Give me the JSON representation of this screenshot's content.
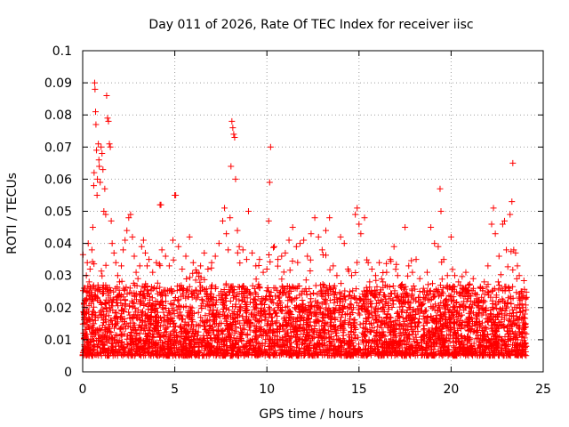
{
  "chart_data": {
    "type": "scatter",
    "title": "Day 011 of 2026, Rate Of TEC Index for receiver iisc",
    "xlabel": "GPS time / hours",
    "ylabel": "ROTI / TECUs",
    "xlim": [
      0,
      25
    ],
    "ylim": [
      0,
      0.1
    ],
    "x_ticks": [
      0,
      5,
      10,
      15,
      20,
      25
    ],
    "y_ticks": [
      0,
      0.01,
      0.02,
      0.03,
      0.04,
      0.05,
      0.06,
      0.07,
      0.08,
      0.09,
      0.1
    ],
    "x_tick_labels": [
      "0",
      "5",
      "10",
      "15",
      "20",
      "25"
    ],
    "y_tick_labels": [
      "0",
      "0.01",
      "0.02",
      "0.03",
      "0.04",
      "0.05",
      "0.06",
      "0.07",
      "0.08",
      "0.09",
      "0.1"
    ],
    "grid": true,
    "marker": "+",
    "series_color": "#ff0000",
    "points": [
      [
        0.05,
        0.012
      ],
      [
        0.1,
        0.018
      ],
      [
        0.15,
        0.022
      ],
      [
        0.2,
        0.03
      ],
      [
        0.25,
        0.034
      ],
      [
        0.3,
        0.04
      ],
      [
        0.35,
        0.028
      ],
      [
        0.4,
        0.032
      ],
      [
        0.45,
        0.026
      ],
      [
        0.5,
        0.038
      ],
      [
        0.55,
        0.045
      ],
      [
        0.6,
        0.058
      ],
      [
        0.62,
        0.062
      ],
      [
        0.65,
        0.09
      ],
      [
        0.67,
        0.088
      ],
      [
        0.7,
        0.081
      ],
      [
        0.72,
        0.077
      ],
      [
        0.75,
        0.069
      ],
      [
        0.78,
        0.055
      ],
      [
        0.8,
        0.06
      ],
      [
        0.85,
        0.071
      ],
      [
        0.88,
        0.066
      ],
      [
        0.9,
        0.064
      ],
      [
        0.95,
        0.059
      ],
      [
        1.0,
        0.07
      ],
      [
        1.05,
        0.068
      ],
      [
        1.1,
        0.063
      ],
      [
        1.15,
        0.05
      ],
      [
        1.2,
        0.057
      ],
      [
        1.25,
        0.049
      ],
      [
        1.3,
        0.086
      ],
      [
        1.35,
        0.079
      ],
      [
        1.4,
        0.078
      ],
      [
        1.45,
        0.071
      ],
      [
        1.5,
        0.07
      ],
      [
        1.55,
        0.047
      ],
      [
        1.6,
        0.04
      ],
      [
        1.7,
        0.037
      ],
      [
        1.8,
        0.034
      ],
      [
        1.9,
        0.03
      ],
      [
        2.0,
        0.028
      ],
      [
        2.1,
        0.033
      ],
      [
        2.2,
        0.038
      ],
      [
        2.3,
        0.041
      ],
      [
        2.4,
        0.044
      ],
      [
        2.5,
        0.048
      ],
      [
        2.6,
        0.049
      ],
      [
        2.7,
        0.042
      ],
      [
        2.8,
        0.036
      ],
      [
        2.9,
        0.031
      ],
      [
        3.0,
        0.029
      ],
      [
        3.1,
        0.033
      ],
      [
        3.2,
        0.039
      ],
      [
        3.3,
        0.041
      ],
      [
        3.4,
        0.037
      ],
      [
        3.5,
        0.033
      ],
      [
        3.6,
        0.035
      ],
      [
        3.8,
        0.031
      ],
      [
        4.0,
        0.034
      ],
      [
        4.2,
        0.052
      ],
      [
        4.25,
        0.052
      ],
      [
        4.3,
        0.038
      ],
      [
        4.5,
        0.036
      ],
      [
        4.7,
        0.033
      ],
      [
        4.9,
        0.041
      ],
      [
        5.0,
        0.055
      ],
      [
        5.05,
        0.055
      ],
      [
        5.2,
        0.039
      ],
      [
        5.4,
        0.032
      ],
      [
        5.6,
        0.036
      ],
      [
        5.8,
        0.042
      ],
      [
        6.0,
        0.034
      ],
      [
        6.2,
        0.031
      ],
      [
        6.4,
        0.033
      ],
      [
        6.6,
        0.037
      ],
      [
        6.8,
        0.032
      ],
      [
        7.0,
        0.034
      ],
      [
        7.2,
        0.036
      ],
      [
        7.4,
        0.04
      ],
      [
        7.6,
        0.047
      ],
      [
        7.7,
        0.051
      ],
      [
        7.8,
        0.043
      ],
      [
        7.9,
        0.038
      ],
      [
        8.0,
        0.048
      ],
      [
        8.05,
        0.064
      ],
      [
        8.1,
        0.078
      ],
      [
        8.15,
        0.076
      ],
      [
        8.2,
        0.074
      ],
      [
        8.25,
        0.073
      ],
      [
        8.3,
        0.06
      ],
      [
        8.4,
        0.044
      ],
      [
        8.5,
        0.039
      ],
      [
        8.7,
        0.038
      ],
      [
        8.9,
        0.035
      ],
      [
        9.0,
        0.05
      ],
      [
        9.2,
        0.037
      ],
      [
        9.4,
        0.033
      ],
      [
        9.6,
        0.035
      ],
      [
        9.8,
        0.031
      ],
      [
        10.0,
        0.032
      ],
      [
        10.1,
        0.047
      ],
      [
        10.15,
        0.059
      ],
      [
        10.2,
        0.07
      ],
      [
        10.4,
        0.039
      ],
      [
        10.6,
        0.035
      ],
      [
        10.8,
        0.036
      ],
      [
        11.0,
        0.037
      ],
      [
        11.2,
        0.041
      ],
      [
        11.4,
        0.045
      ],
      [
        11.6,
        0.039
      ],
      [
        11.8,
        0.04
      ],
      [
        12.0,
        0.041
      ],
      [
        12.2,
        0.036
      ],
      [
        12.4,
        0.043
      ],
      [
        12.6,
        0.048
      ],
      [
        12.8,
        0.042
      ],
      [
        13.0,
        0.038
      ],
      [
        13.2,
        0.044
      ],
      [
        13.4,
        0.048
      ],
      [
        13.6,
        0.033
      ],
      [
        13.8,
        0.03
      ],
      [
        14.0,
        0.042
      ],
      [
        14.2,
        0.04
      ],
      [
        14.4,
        0.032
      ],
      [
        14.6,
        0.03
      ],
      [
        14.8,
        0.049
      ],
      [
        14.9,
        0.051
      ],
      [
        15.0,
        0.046
      ],
      [
        15.1,
        0.043
      ],
      [
        15.3,
        0.048
      ],
      [
        15.5,
        0.034
      ],
      [
        15.7,
        0.032
      ],
      [
        15.9,
        0.03
      ],
      [
        16.1,
        0.034
      ],
      [
        16.3,
        0.028
      ],
      [
        16.5,
        0.031
      ],
      [
        16.7,
        0.035
      ],
      [
        16.9,
        0.039
      ],
      [
        17.1,
        0.03
      ],
      [
        17.3,
        0.027
      ],
      [
        17.5,
        0.045
      ],
      [
        17.7,
        0.033
      ],
      [
        17.9,
        0.031
      ],
      [
        18.1,
        0.035
      ],
      [
        18.3,
        0.029
      ],
      [
        18.5,
        0.026
      ],
      [
        18.7,
        0.031
      ],
      [
        18.9,
        0.045
      ],
      [
        19.1,
        0.04
      ],
      [
        19.3,
        0.039
      ],
      [
        19.4,
        0.057
      ],
      [
        19.45,
        0.05
      ],
      [
        19.6,
        0.035
      ],
      [
        19.8,
        0.03
      ],
      [
        20.0,
        0.042
      ],
      [
        20.2,
        0.03
      ],
      [
        20.4,
        0.028
      ],
      [
        20.6,
        0.026
      ],
      [
        20.8,
        0.031
      ],
      [
        21.0,
        0.027
      ],
      [
        21.2,
        0.029
      ],
      [
        21.4,
        0.024
      ],
      [
        21.6,
        0.026
      ],
      [
        21.8,
        0.028
      ],
      [
        22.0,
        0.033
      ],
      [
        22.2,
        0.046
      ],
      [
        22.3,
        0.051
      ],
      [
        22.4,
        0.043
      ],
      [
        22.6,
        0.036
      ],
      [
        22.8,
        0.046
      ],
      [
        22.9,
        0.047
      ],
      [
        23.0,
        0.038
      ],
      [
        23.2,
        0.049
      ],
      [
        23.3,
        0.053
      ],
      [
        23.35,
        0.065
      ],
      [
        23.4,
        0.038
      ],
      [
        23.5,
        0.037
      ],
      [
        23.6,
        0.033
      ],
      [
        23.7,
        0.03
      ],
      [
        23.8,
        0.025
      ],
      [
        23.9,
        0.02
      ],
      [
        24.0,
        0.018
      ],
      [
        24.05,
        0.014
      ]
    ]
  }
}
